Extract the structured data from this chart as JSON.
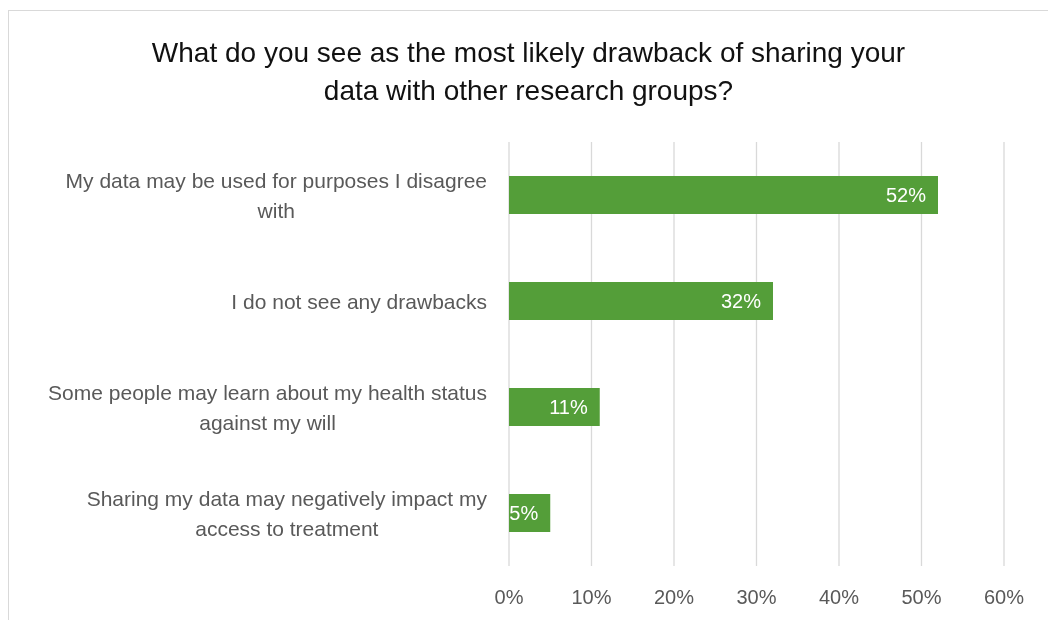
{
  "chart_data": {
    "type": "bar",
    "orientation": "horizontal",
    "title": "What do you see as the most likely drawback of sharing your data with other research groups?",
    "categories": [
      "My data may be used for purposes I disagree with",
      "I do not see any drawbacks",
      "Some people may learn about my health status against my will",
      "Sharing my data may negatively impact my access to treatment"
    ],
    "values": [
      52,
      32,
      11,
      5
    ],
    "color": "#549e39",
    "value_labels": [
      "52%",
      "32%",
      "11%",
      "5%"
    ],
    "xlim": [
      0,
      60
    ],
    "xticks": [
      {
        "value": 0,
        "label": "0%"
      },
      {
        "value": 10,
        "label": "10%"
      },
      {
        "value": 20,
        "label": "20%"
      },
      {
        "value": 30,
        "label": "30%"
      },
      {
        "value": 40,
        "label": "40%"
      },
      {
        "value": 50,
        "label": "50%"
      },
      {
        "value": 60,
        "label": "60%"
      }
    ],
    "grid": "x"
  }
}
